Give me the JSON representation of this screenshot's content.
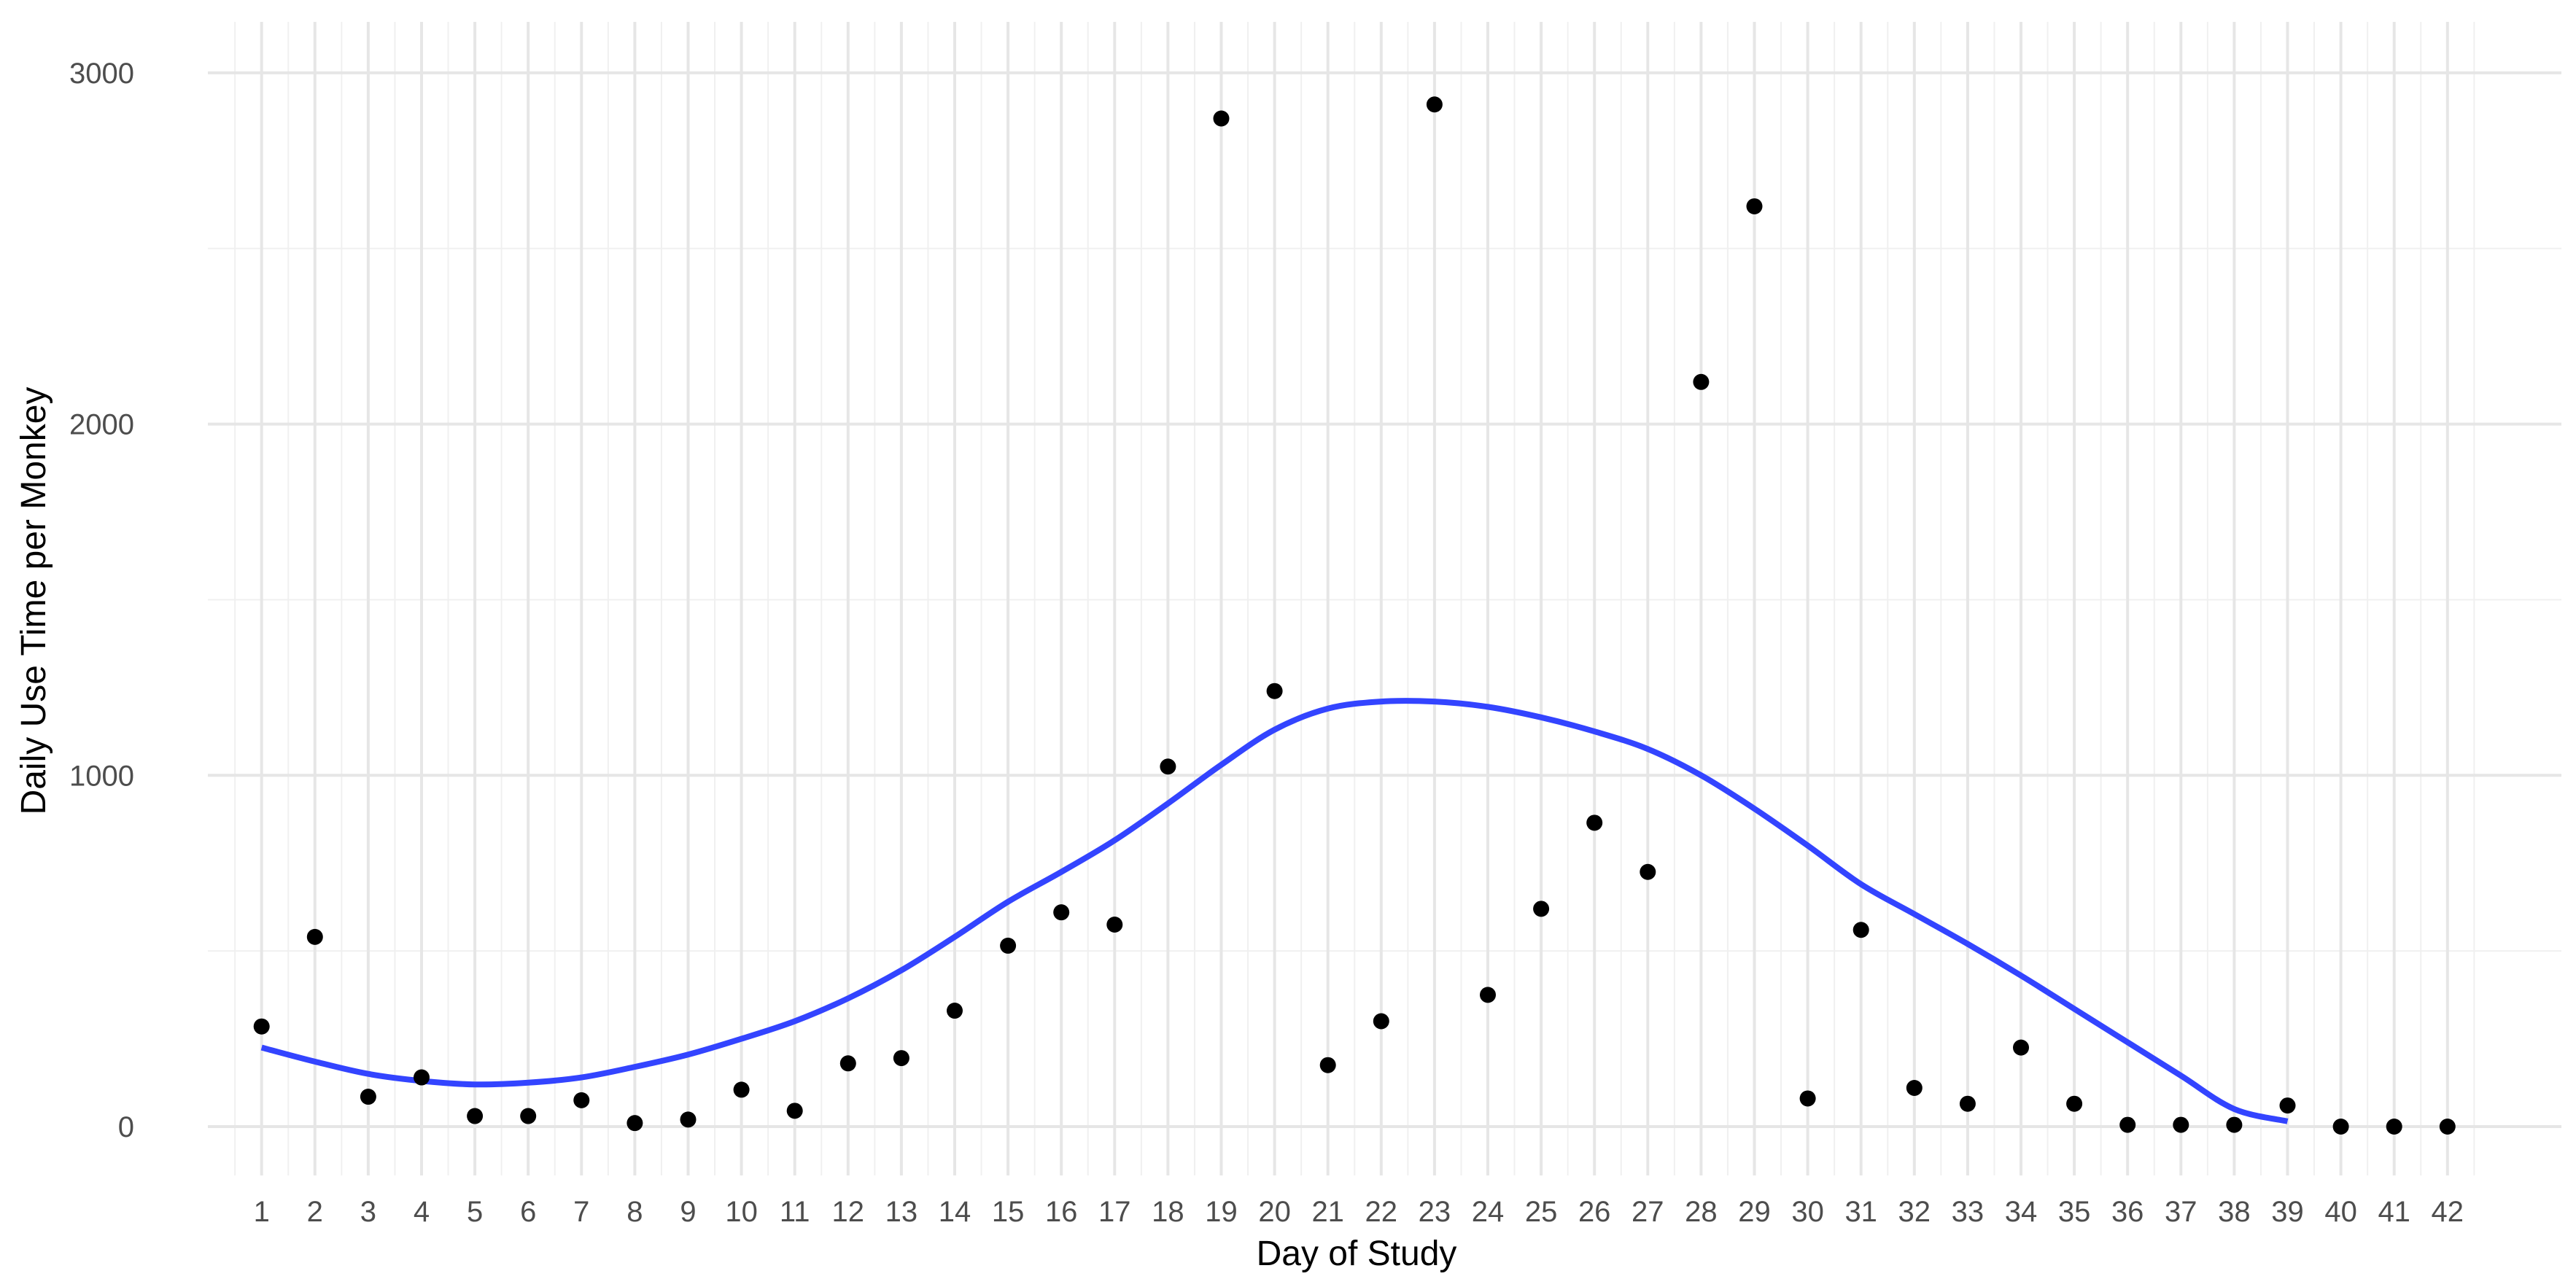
{
  "chart_data": {
    "type": "scatter",
    "title": "",
    "xlabel": "Day of Study",
    "ylabel": "Daily Use Time per Monkey",
    "x": [
      1,
      2,
      3,
      4,
      5,
      6,
      7,
      8,
      9,
      10,
      11,
      12,
      13,
      14,
      15,
      16,
      17,
      18,
      19,
      20,
      21,
      22,
      23,
      24,
      25,
      26,
      27,
      28,
      29,
      30,
      31,
      32,
      33,
      34,
      35,
      36,
      37,
      38,
      39,
      40,
      41,
      42
    ],
    "x_tick_labels": [
      "1",
      "2",
      "3",
      "4",
      "5",
      "6",
      "7",
      "8",
      "9",
      "10",
      "11",
      "12",
      "13",
      "14",
      "15",
      "16",
      "17",
      "18",
      "19",
      "20",
      "21",
      "22",
      "23",
      "24",
      "25",
      "26",
      "27",
      "28",
      "29",
      "30",
      "31",
      "32",
      "33",
      "34",
      "35",
      "36",
      "37",
      "38",
      "39",
      "40",
      "41",
      "42"
    ],
    "y_ticks": [
      0,
      1000,
      2000,
      3000
    ],
    "y_tick_labels": [
      "0",
      "1000",
      "2000",
      "3000"
    ],
    "xlim": [
      -0.55,
      43.55
    ],
    "ylim": [
      -150,
      3150
    ],
    "grid": true,
    "series": [
      {
        "kind": "points",
        "color": "#000000",
        "values": [
          285,
          540,
          85,
          140,
          30,
          30,
          75,
          10,
          20,
          105,
          45,
          180,
          195,
          330,
          515,
          610,
          575,
          1025,
          2870,
          1240,
          175,
          300,
          2910,
          375,
          620,
          865,
          725,
          2120,
          2620,
          80,
          560,
          110,
          65,
          225,
          65,
          5,
          5,
          5,
          60,
          0,
          0,
          0
        ]
      },
      {
        "kind": "smooth",
        "color": "#3344ff",
        "x": [
          1,
          2,
          3,
          4,
          5,
          6,
          7,
          8,
          9,
          10,
          11,
          12,
          13,
          14,
          15,
          16,
          17,
          18,
          19,
          20,
          21,
          22,
          23,
          24,
          25,
          26,
          27,
          28,
          29,
          30,
          31,
          32,
          33,
          34,
          35,
          36,
          37,
          38,
          39
        ],
        "values": [
          225,
          185,
          150,
          130,
          120,
          125,
          140,
          170,
          205,
          250,
          300,
          365,
          445,
          540,
          640,
          725,
          815,
          920,
          1030,
          1130,
          1190,
          1210,
          1210,
          1195,
          1165,
          1125,
          1075,
          1000,
          905,
          800,
          690,
          605,
          520,
          430,
          335,
          240,
          145,
          50,
          15
        ]
      }
    ]
  }
}
